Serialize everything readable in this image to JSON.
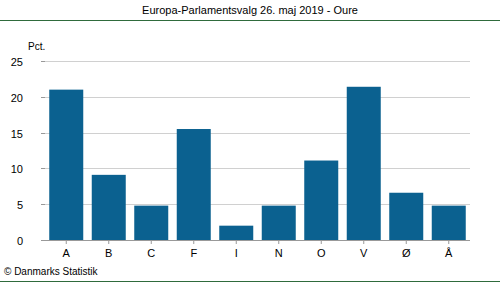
{
  "chart_data": {
    "type": "bar",
    "title": "Europa-Parlamentsvalg 26. maj 2019 - Oure",
    "y_label": "Pct.",
    "footer": "© Danmarks Statistik",
    "categories": [
      "A",
      "B",
      "C",
      "F",
      "I",
      "N",
      "O",
      "V",
      "Ø",
      "Å"
    ],
    "values": [
      21.0,
      9.1,
      4.8,
      15.5,
      2.0,
      4.8,
      11.1,
      21.4,
      6.6,
      4.8
    ],
    "color": "#0b6190",
    "ylim": [
      0,
      25
    ],
    "yticks": [
      0,
      5,
      10,
      15,
      20,
      25
    ],
    "grid": true
  }
}
